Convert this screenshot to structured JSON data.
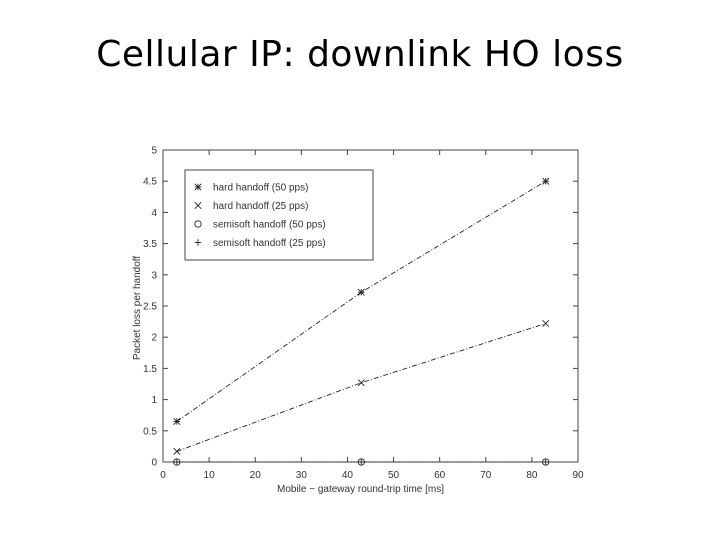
{
  "slide": {
    "title": "Cellular IP: downlink HO loss"
  },
  "chart_data": {
    "type": "line",
    "title": "",
    "xlabel": "Mobile − gateway round-trip time [ms]",
    "ylabel": "Packet loss per handoff",
    "xlim": [
      0,
      90
    ],
    "ylim": [
      0,
      5
    ],
    "xticks": [
      0,
      10,
      20,
      30,
      40,
      50,
      60,
      70,
      80,
      90
    ],
    "yticks": [
      0,
      0.5,
      1,
      1.5,
      2,
      2.5,
      3,
      3.5,
      4,
      4.5,
      5
    ],
    "grid": false,
    "legend_position": "top-left",
    "series": [
      {
        "name": "hard handoff (50 pps)",
        "marker": "*",
        "line_style": "dashdot",
        "x": [
          3,
          43,
          83
        ],
        "y": [
          0.65,
          2.72,
          4.5
        ]
      },
      {
        "name": "hard handoff (25 pps)",
        "marker": "x",
        "line_style": "dashdot",
        "x": [
          3,
          43,
          83
        ],
        "y": [
          0.17,
          1.27,
          2.22
        ]
      },
      {
        "name": "semisoft handoff (50 pps)",
        "marker": "o",
        "line_style": "dotted",
        "x": [
          3,
          43,
          83
        ],
        "y": [
          0,
          0,
          0
        ]
      },
      {
        "name": "semisoft handoff (25 pps)",
        "marker": "+",
        "line_style": "dotted",
        "x": [
          3,
          43,
          83
        ],
        "y": [
          0,
          0,
          0
        ]
      }
    ]
  }
}
